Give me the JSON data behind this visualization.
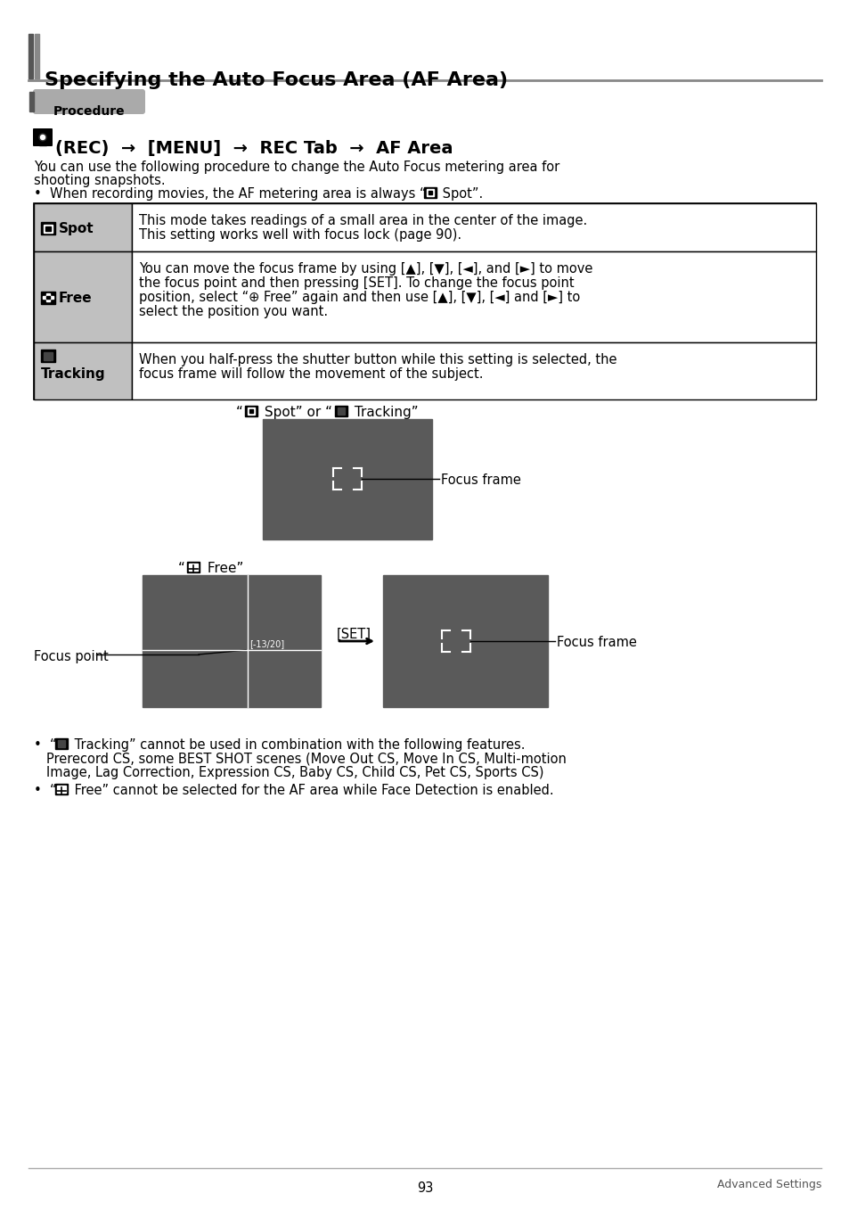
{
  "title": "Specifying the Auto Focus Area (AF Area)",
  "procedure_label": "Procedure",
  "page_num": "93",
  "page_right": "Advanced Settings",
  "bg_color": "#ffffff",
  "dark_rect_color": "#5a5a5a",
  "table_label_bg": "#c0c0c0",
  "border_color": "#000000",
  "procedure_bg": "#aaaaaa",
  "title_bar_color": "#555555",
  "hr_color": "#888888"
}
